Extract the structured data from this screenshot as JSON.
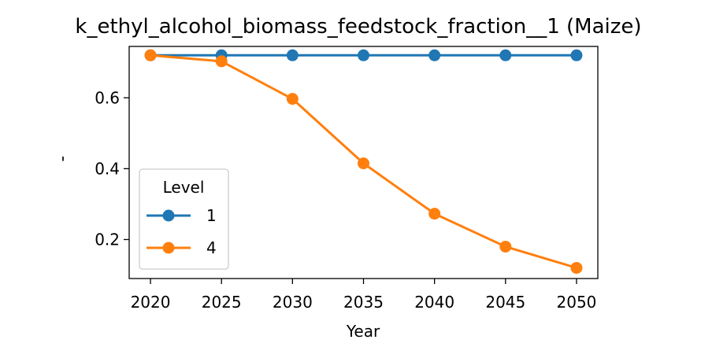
{
  "chart_data": {
    "type": "line",
    "title": "k_ethyl_alcohol_biomass_feedstock_fraction__1 (Maize)",
    "xlabel": "Year",
    "ylabel": "'",
    "x": [
      2020,
      2025,
      2030,
      2035,
      2040,
      2045,
      2050
    ],
    "xticks": [
      "2020",
      "2025",
      "2030",
      "2035",
      "2040",
      "2045",
      "2050"
    ],
    "yticks": [
      0.2,
      0.4,
      0.6
    ],
    "ytick_labels": [
      "0.2",
      "0.4",
      "0.6"
    ],
    "xlim": [
      2018.5,
      2051.5
    ],
    "ylim": [
      0.09,
      0.745
    ],
    "grid": false,
    "legend": {
      "title": "Level",
      "placement": "lower-left"
    },
    "series": [
      {
        "name": "1",
        "color": "#1f77b4",
        "values": [
          0.72,
          0.72,
          0.72,
          0.72,
          0.72,
          0.72,
          0.72
        ]
      },
      {
        "name": "4",
        "color": "#ff7f0e",
        "values": [
          0.72,
          0.703,
          0.597,
          0.415,
          0.273,
          0.18,
          0.12
        ]
      }
    ]
  }
}
